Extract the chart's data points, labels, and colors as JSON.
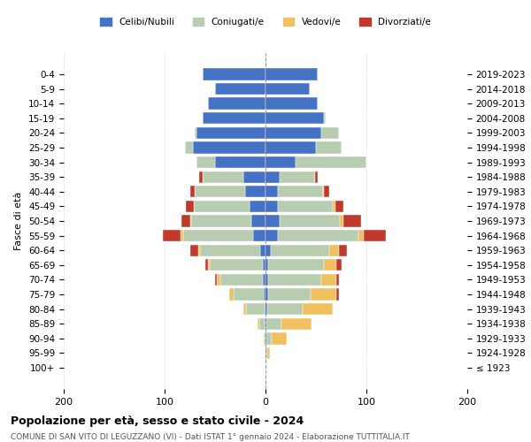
{
  "age_groups": [
    "100+",
    "95-99",
    "90-94",
    "85-89",
    "80-84",
    "75-79",
    "70-74",
    "65-69",
    "60-64",
    "55-59",
    "50-54",
    "45-49",
    "40-44",
    "35-39",
    "30-34",
    "25-29",
    "20-24",
    "15-19",
    "10-14",
    "5-9",
    "0-4"
  ],
  "birth_years": [
    "≤ 1923",
    "1924-1928",
    "1929-1933",
    "1934-1938",
    "1939-1943",
    "1944-1948",
    "1949-1953",
    "1954-1958",
    "1959-1963",
    "1964-1968",
    "1969-1973",
    "1974-1978",
    "1979-1983",
    "1984-1988",
    "1989-1993",
    "1994-1998",
    "1999-2003",
    "2004-2008",
    "2009-2013",
    "2014-2018",
    "2019-2023"
  ],
  "male": {
    "celibi": [
      0,
      0,
      0,
      1,
      1,
      2,
      3,
      3,
      5,
      12,
      14,
      16,
      20,
      22,
      50,
      72,
      68,
      62,
      57,
      50,
      62
    ],
    "coniugati": [
      0,
      0,
      2,
      5,
      18,
      30,
      42,
      52,
      60,
      70,
      60,
      55,
      50,
      40,
      18,
      8,
      2,
      0,
      0,
      0,
      0
    ],
    "vedovi": [
      0,
      0,
      0,
      2,
      3,
      4,
      3,
      2,
      2,
      2,
      1,
      0,
      0,
      0,
      0,
      0,
      0,
      0,
      0,
      0,
      0
    ],
    "divorziati": [
      0,
      0,
      0,
      0,
      0,
      0,
      2,
      3,
      8,
      18,
      8,
      8,
      5,
      4,
      0,
      0,
      0,
      0,
      0,
      0,
      0
    ]
  },
  "female": {
    "nubili": [
      0,
      1,
      1,
      1,
      2,
      3,
      3,
      3,
      5,
      12,
      14,
      12,
      12,
      14,
      30,
      50,
      55,
      58,
      52,
      44,
      52
    ],
    "coniugate": [
      0,
      1,
      5,
      15,
      35,
      42,
      52,
      55,
      58,
      80,
      60,
      55,
      45,
      35,
      70,
      25,
      18,
      2,
      0,
      0,
      0
    ],
    "vedove": [
      0,
      2,
      15,
      30,
      30,
      25,
      15,
      12,
      10,
      5,
      3,
      2,
      1,
      0,
      0,
      0,
      0,
      0,
      0,
      0,
      0
    ],
    "divorziate": [
      0,
      0,
      0,
      0,
      0,
      3,
      3,
      5,
      8,
      22,
      18,
      8,
      5,
      3,
      0,
      0,
      0,
      0,
      0,
      0,
      0
    ]
  },
  "colors": {
    "celibi": "#4472C4",
    "coniugati": "#B8CCB0",
    "vedovi": "#F0C060",
    "divorziati": "#C0392B"
  },
  "xlim": [
    -200,
    200
  ],
  "xticks": [
    -200,
    -100,
    0,
    100,
    200
  ],
  "xticklabels": [
    "200",
    "100",
    "0",
    "100",
    "200"
  ],
  "title": "Popolazione per età, sesso e stato civile - 2024",
  "subtitle": "COMUNE DI SAN VITO DI LEGUZZANO (VI) - Dati ISTAT 1° gennaio 2024 - Elaborazione TUTTITALIA.IT",
  "ylabel_left": "Fasce di età",
  "legend_labels": [
    "Celibi/Nubili",
    "Coniugati/e",
    "Vedovi/e",
    "Divorziati/e"
  ]
}
